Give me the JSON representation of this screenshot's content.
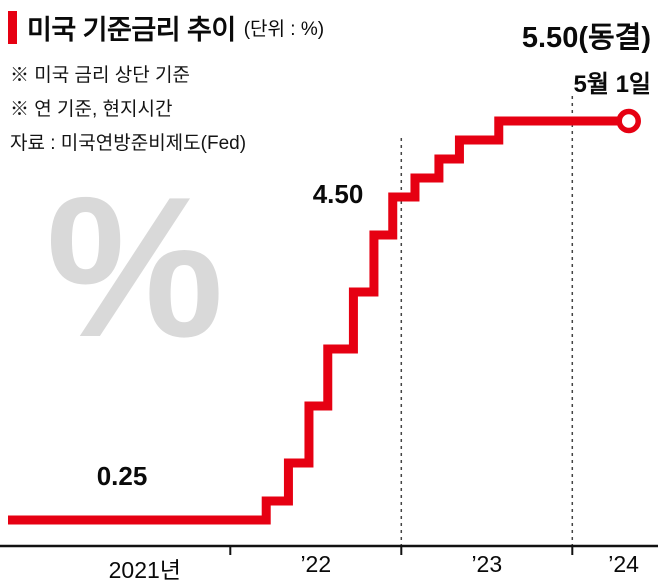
{
  "header": {
    "title": "미국 기준금리 추이",
    "unit_label": "(단위 : %)",
    "notes": [
      "※ 미국 금리 상단 기준",
      "※ 연 기준, 현지시간"
    ],
    "source": "자료 : 미국연방준비제도(Fed)"
  },
  "annotation": {
    "value_label": "5.50(동결)",
    "date_label": "5월 1일"
  },
  "watermark": "%",
  "colors": {
    "line": "#e60012",
    "accent_bar": "#e60012",
    "axis": "#111111",
    "gridline": "#444444",
    "watermark": "#d9d9d9"
  },
  "chart_data": {
    "type": "line",
    "style": "step",
    "title": "미국 기준금리 추이 (단위 : %)",
    "xlabel": "",
    "ylabel": "",
    "x_range_year": [
      2020.7,
      2024.45
    ],
    "y_range": [
      0,
      5.75
    ],
    "grid": "dashed-vertical-year-boundaries",
    "legend": "none",
    "x_tick_labels": [
      "2021년",
      "’22",
      "’23",
      "’24"
    ],
    "x_tick_positions_year": [
      2021.5,
      2022.5,
      2023.5,
      2024.3
    ],
    "axis_tick_years": [
      2022,
      2023,
      2024
    ],
    "year_boundaries_dashed": [
      2023,
      2024
    ],
    "series": [
      {
        "name": "미국 기준금리(상단, 연 %)",
        "points": [
          {
            "year": 2020.7,
            "rate": 0.25
          },
          {
            "year": 2022.21,
            "rate": 0.5
          },
          {
            "year": 2022.34,
            "rate": 1.0
          },
          {
            "year": 2022.46,
            "rate": 1.75
          },
          {
            "year": 2022.57,
            "rate": 2.5
          },
          {
            "year": 2022.72,
            "rate": 3.25
          },
          {
            "year": 2022.84,
            "rate": 4.0
          },
          {
            "year": 2022.95,
            "rate": 4.5
          },
          {
            "year": 2023.08,
            "rate": 4.75
          },
          {
            "year": 2023.22,
            "rate": 5.0
          },
          {
            "year": 2023.34,
            "rate": 5.25
          },
          {
            "year": 2023.57,
            "rate": 5.5
          }
        ],
        "end_point": {
          "year": 2024.33,
          "rate": 5.5,
          "label": "5.50(동결)",
          "date": "5월 1일",
          "marker": "open-circle"
        }
      }
    ],
    "point_labels": [
      {
        "text": "0.25",
        "rate": 0.25
      },
      {
        "text": "4.50",
        "rate": 4.5
      }
    ]
  }
}
